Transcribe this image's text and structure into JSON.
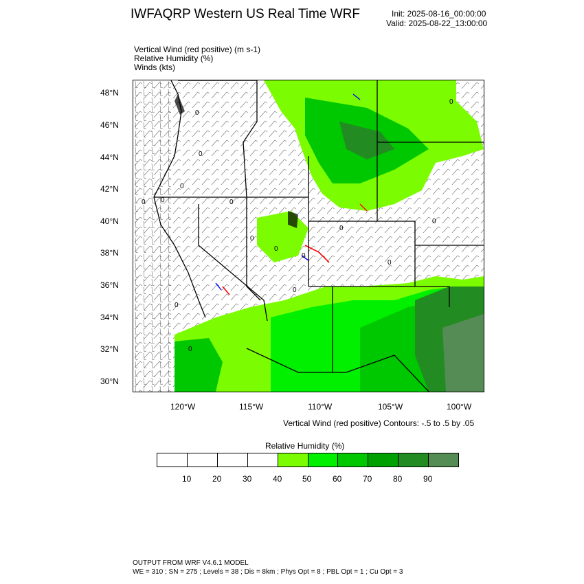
{
  "header": {
    "title": "IWFAQRP Western US Real Time WRF",
    "init": "Init: 2025-08-16_00:00:00",
    "valid": "Valid: 2025-08-22_13:00:00"
  },
  "fields": [
    "Vertical Wind (red positive)   (m s-1)",
    "Relative Humidity   (%)",
    "Winds   (kts)"
  ],
  "map": {
    "lat_labels": [
      "48°N",
      "46°N",
      "44°N",
      "42°N",
      "40°N",
      "38°N",
      "36°N",
      "34°N",
      "32°N",
      "30°N"
    ],
    "lon_labels": [
      "120°W",
      "115°W",
      "110°W",
      "105°W",
      "100°W"
    ],
    "contour_label": "0",
    "colors": {
      "rh_40": "#7cfc00",
      "rh_50": "#00f000",
      "rh_60": "#00c800",
      "rh_70": "#00a000",
      "rh_80": "#228b22",
      "rh_90": "#558b55",
      "border": "#000000",
      "updraft": "#ff0000",
      "downdraft": "#0000ff"
    }
  },
  "contour_note": "Vertical Wind (red positive) Contours: -.5 to .5 by .05",
  "colorbar": {
    "title": "Relative Humidity   (%)",
    "labels": [
      "10",
      "20",
      "30",
      "40",
      "50",
      "60",
      "70",
      "80",
      "90"
    ],
    "colors": [
      "#ffffff",
      "#ffffff",
      "#ffffff",
      "#ffffff",
      "#7cfc00",
      "#00f000",
      "#00c800",
      "#00a000",
      "#228b22",
      "#558b55"
    ]
  },
  "footer": {
    "line1": "OUTPUT FROM WRF V4.6.1 MODEL",
    "line2": "WE = 310 ; SN = 275 ; Levels = 38 ; Dis = 8km ; Phys Opt = 8 ; PBL Opt = 1 ; Cu Opt = 3"
  }
}
